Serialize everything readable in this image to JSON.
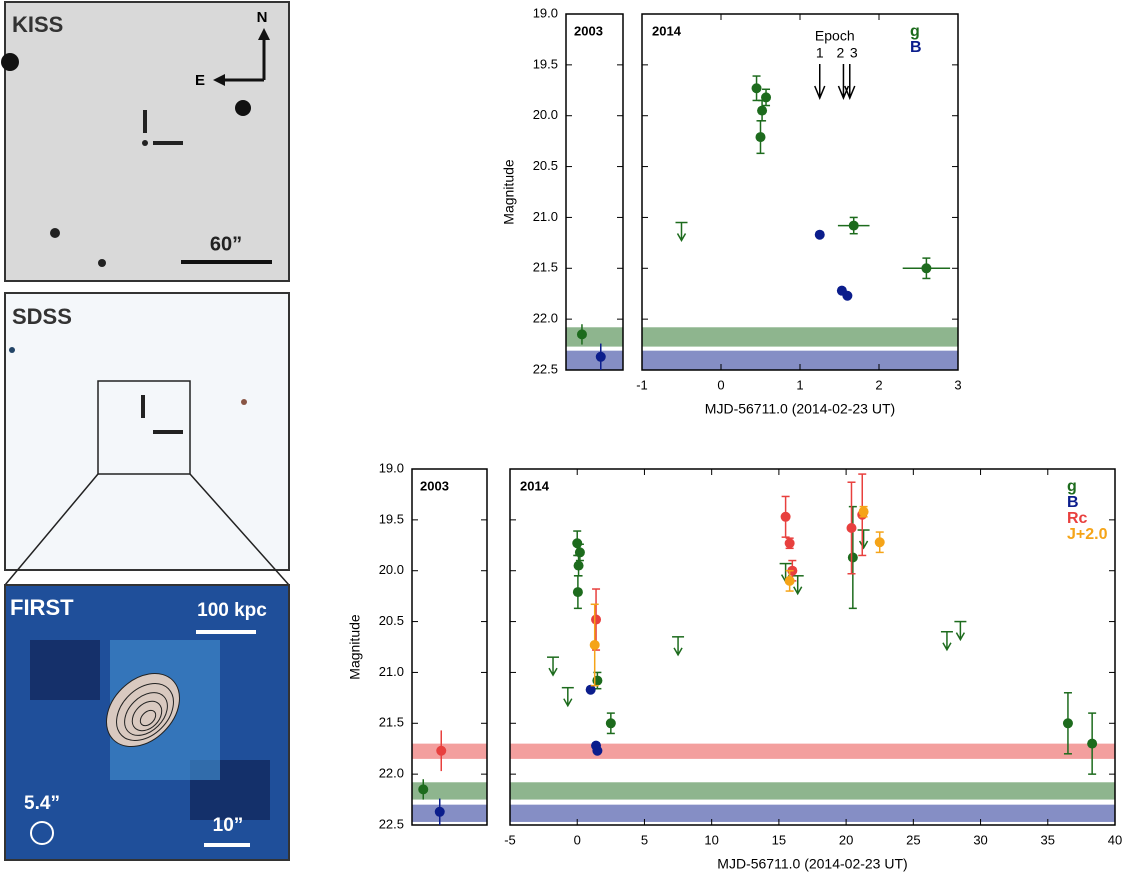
{
  "panels": [
    {
      "label": "KISS",
      "north": "N",
      "east": "E",
      "scale": "60”"
    },
    {
      "label": "SDSS"
    },
    {
      "label": "FIRST",
      "scale_top": "100 kpc",
      "beam": "5.4”",
      "scale": "10”"
    }
  ],
  "chart_data": [
    {
      "type": "scatter",
      "ylabel": "Magnitude",
      "xlabel": "MJD-56711.0 (2014-02-23 UT)",
      "panel_labels": [
        "2003",
        "2014"
      ],
      "y_inverted": true,
      "xlim": [
        -1,
        3
      ],
      "xticks": [
        -1,
        0,
        1,
        2,
        3
      ],
      "ylim": [
        19.0,
        22.5
      ],
      "yticks": [
        {
          "value": 19.0,
          "label": "19.0"
        },
        {
          "value": 19.5,
          "label": "19.5"
        },
        {
          "value": 20.0,
          "label": "20.0"
        },
        {
          "value": 20.5,
          "label": "20.5"
        },
        {
          "value": 21.0,
          "label": "21.0"
        },
        {
          "value": 21.5,
          "label": "21.5"
        },
        {
          "value": 22.0,
          "label": "22.0"
        },
        {
          "value": 22.5,
          "label": "22.5"
        }
      ],
      "epoch_label": "Epoch",
      "epochs": [
        {
          "label": "1",
          "x": 1.25
        },
        {
          "label": "2",
          "x": 1.55
        },
        {
          "label": "3",
          "x": 1.63
        }
      ],
      "series": [
        {
          "name": "g",
          "color": "#1d6b1d",
          "x": [
            0.45,
            0.5,
            0.52,
            0.57,
            1.68,
            2.6
          ],
          "values": [
            19.73,
            20.21,
            19.95,
            19.82,
            21.08,
            21.5
          ],
          "errors": [
            0.12,
            0.16,
            0.1,
            0.08,
            0.08,
            0.1
          ],
          "xerrors": [
            null,
            null,
            null,
            null,
            0.2,
            0.3
          ],
          "limits_x": [
            -0.5
          ],
          "limits": [
            21.05
          ],
          "value_2003": 22.15,
          "error_2003": 0.1,
          "band_2003": [
            22.08,
            22.27
          ]
        },
        {
          "name": "B",
          "color": "#0b1d8c",
          "x": [
            1.25,
            1.53,
            1.6
          ],
          "values": [
            21.17,
            21.72,
            21.77
          ],
          "value_2003": 22.37,
          "error_2003": 0.13,
          "band_2003": [
            22.31,
            22.5
          ]
        }
      ]
    },
    {
      "type": "scatter",
      "ylabel": "Magnitude",
      "xlabel": "MJD-56711.0 (2014-02-23 UT)",
      "panel_labels": [
        "2003",
        "2014"
      ],
      "y_inverted": true,
      "xlim": [
        -5,
        40
      ],
      "xticks": [
        -5,
        0,
        5,
        10,
        15,
        20,
        25,
        30,
        35,
        40
      ],
      "ylim": [
        19.0,
        22.5
      ],
      "yticks": [
        {
          "value": 19.0,
          "label": "19.0"
        },
        {
          "value": 19.5,
          "label": "19.5"
        },
        {
          "value": 20.0,
          "label": "20.0"
        },
        {
          "value": 20.5,
          "label": "20.5"
        },
        {
          "value": 21.0,
          "label": "21.0"
        },
        {
          "value": 21.5,
          "label": "21.5"
        },
        {
          "value": 22.0,
          "label": "22.0"
        },
        {
          "value": 22.5,
          "label": "22.5"
        }
      ],
      "series": [
        {
          "name": "g",
          "color": "#1d6b1d",
          "x": [
            0.0,
            0.2,
            0.1,
            0.05,
            1.5,
            2.5,
            20.5,
            36.5,
            38.3
          ],
          "values": [
            19.73,
            19.82,
            19.95,
            20.21,
            21.08,
            21.5,
            19.87,
            21.5,
            21.7
          ],
          "errors": [
            0.12,
            0.08,
            0.1,
            0.16,
            0.08,
            0.1,
            0.5,
            0.3,
            0.3
          ],
          "limits_x": [
            -1.8,
            -0.7,
            7.5,
            15.5,
            16.4,
            21.3,
            27.5,
            28.5
          ],
          "limits": [
            20.85,
            21.15,
            20.65,
            19.93,
            20.05,
            19.6,
            20.6,
            20.5
          ],
          "value_2003": 22.15,
          "error_2003": 0.1,
          "band_2003": [
            22.08,
            22.25
          ]
        },
        {
          "name": "B",
          "color": "#0b1d8c",
          "x": [
            1.0,
            1.4,
            1.5
          ],
          "values": [
            21.17,
            21.72,
            21.77
          ],
          "value_2003": 22.37,
          "error_2003": 0.13,
          "band_2003": [
            22.3,
            22.47
          ]
        },
        {
          "name": "Rc",
          "color": "#e8403e",
          "x": [
            1.4,
            15.5,
            15.8,
            16.0,
            20.4,
            21.2
          ],
          "values": [
            20.48,
            19.47,
            19.73,
            20.0,
            19.58,
            19.45
          ],
          "errors": [
            0.3,
            0.2,
            0.05,
            0.1,
            0.45,
            0.4
          ],
          "value_2003": 21.77,
          "error_2003": 0.2,
          "band_2003": [
            21.7,
            21.85
          ]
        },
        {
          "name": "J+2.0",
          "color": "#f5a418",
          "x": [
            1.3,
            15.8,
            21.3,
            22.5
          ],
          "values": [
            20.73,
            20.1,
            19.42,
            19.72
          ],
          "errors": [
            0.4,
            0.1,
            0.05,
            0.1
          ]
        }
      ]
    }
  ]
}
